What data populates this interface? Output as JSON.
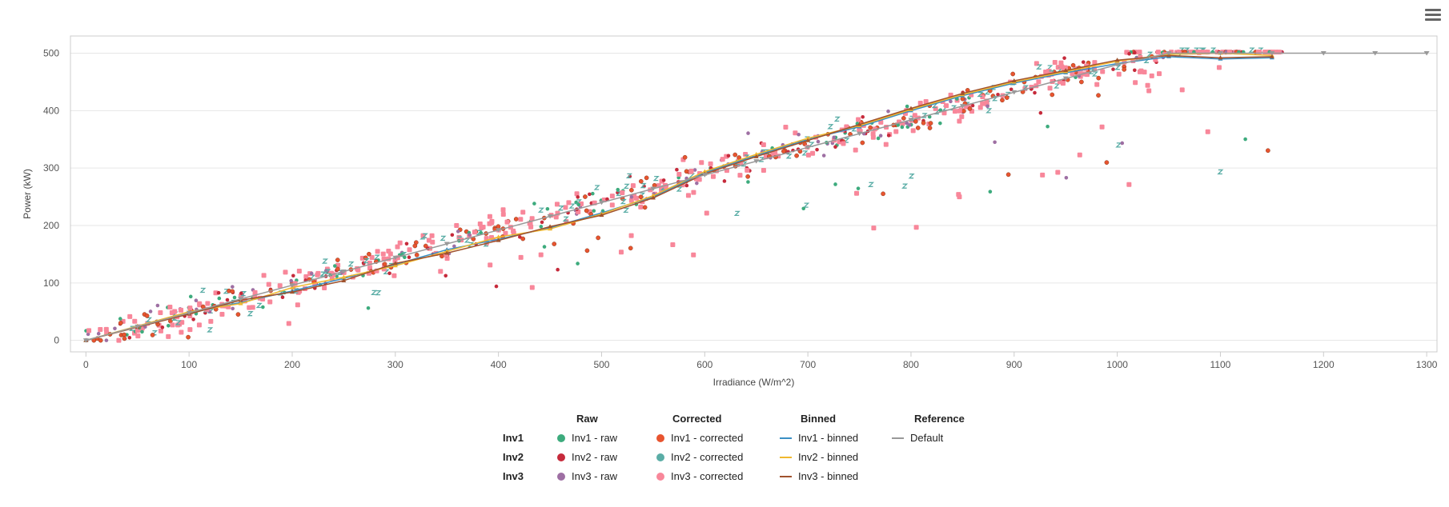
{
  "chart_data": {
    "type": "scatter",
    "title": "",
    "xlabel": "Irradiance (W/m^2)",
    "ylabel": "Power (kW)",
    "xlim": [
      -15,
      1310
    ],
    "ylim": [
      -20,
      530
    ],
    "xticks": [
      0,
      100,
      200,
      300,
      400,
      500,
      600,
      700,
      800,
      900,
      1000,
      1100,
      1200,
      1300
    ],
    "yticks": [
      0,
      100,
      200,
      300,
      400,
      500
    ],
    "grid": true,
    "clip_max": 502,
    "raw_scatter": {
      "seed": 7,
      "count": 900,
      "x_range": [
        0,
        1160
      ],
      "slope": 0.485,
      "spread": 18,
      "outlier_share": 0.14
    },
    "series": [
      {
        "name": "Inv1 - raw",
        "group": "Raw",
        "inverter": "Inv1",
        "marker": "circle",
        "color": "#3dab7d"
      },
      {
        "name": "Inv2 - raw",
        "group": "Raw",
        "inverter": "Inv2",
        "marker": "circle",
        "color": "#c62a3b"
      },
      {
        "name": "Inv3 - raw",
        "group": "Raw",
        "inverter": "Inv3",
        "marker": "circle",
        "color": "#9e6fa3"
      },
      {
        "name": "Inv1 - corrected",
        "group": "Corrected",
        "inverter": "Inv1",
        "marker": "circle",
        "color": "#e8542f"
      },
      {
        "name": "Inv2 - corrected",
        "group": "Corrected",
        "inverter": "Inv2",
        "marker": "circle",
        "color": "#5aada6"
      },
      {
        "name": "Inv3 - corrected",
        "group": "Corrected",
        "inverter": "Inv3",
        "marker": "square",
        "color": "#f8879a"
      },
      {
        "name": "Inv1 - binned",
        "group": "Binned",
        "inverter": "Inv1",
        "marker": "line",
        "color": "#3a8fc4",
        "x": [
          0,
          50,
          100,
          150,
          200,
          250,
          300,
          350,
          400,
          450,
          500,
          550,
          600,
          650,
          700,
          750,
          800,
          850,
          900,
          950,
          1000,
          1050,
          1100,
          1150
        ],
        "y": [
          0,
          24,
          48,
          66,
          86,
          108,
          132,
          158,
          176,
          196,
          222,
          250,
          292,
          322,
          350,
          372,
          400,
          426,
          448,
          466,
          482,
          494,
          490,
          492
        ]
      },
      {
        "name": "Inv2 - binned",
        "group": "Binned",
        "inverter": "Inv2",
        "marker": "line",
        "color": "#f0b82e",
        "x": [
          0,
          50,
          100,
          150,
          200,
          250,
          300,
          350,
          400,
          450,
          500,
          550,
          600,
          650,
          700,
          750,
          800,
          850,
          900,
          950,
          1000,
          1050,
          1100,
          1150
        ],
        "y": [
          0,
          25,
          50,
          64,
          92,
          110,
          130,
          155,
          180,
          194,
          220,
          252,
          294,
          324,
          352,
          374,
          402,
          428,
          450,
          468,
          486,
          498,
          500,
          496
        ]
      },
      {
        "name": "Inv3 - binned",
        "group": "Binned",
        "inverter": "Inv3",
        "marker": "line",
        "color": "#a0522d",
        "x": [
          0,
          50,
          100,
          150,
          200,
          250,
          300,
          350,
          400,
          450,
          500,
          550,
          600,
          650,
          700,
          750,
          800,
          850,
          900,
          950,
          1000,
          1050,
          1100,
          1150
        ],
        "y": [
          0,
          23,
          46,
          70,
          84,
          104,
          134,
          152,
          174,
          198,
          218,
          248,
          290,
          320,
          348,
          376,
          404,
          430,
          452,
          470,
          488,
          496,
          492,
          494
        ]
      },
      {
        "name": "Default",
        "group": "Reference",
        "inverter": "",
        "marker": "triangle-down",
        "color": "#999999",
        "x": [
          0,
          50,
          100,
          150,
          200,
          250,
          300,
          350,
          400,
          450,
          500,
          550,
          600,
          650,
          700,
          750,
          800,
          850,
          900,
          950,
          1000,
          1050,
          1100,
          1150,
          1200,
          1250,
          1300
        ],
        "y": [
          0,
          24,
          48,
          72,
          96,
          120,
          144,
          168,
          192,
          216,
          240,
          264,
          288,
          312,
          336,
          360,
          384,
          408,
          432,
          456,
          480,
          500,
          500,
          500,
          500,
          500,
          500
        ]
      }
    ]
  },
  "legend": {
    "headers": {
      "raw": "Raw",
      "corrected": "Corrected",
      "binned": "Binned",
      "reference": "Reference"
    },
    "rows": [
      "Inv1",
      "Inv2",
      "Inv3"
    ],
    "items": {
      "inv1_raw": "Inv1 - raw",
      "inv2_raw": "Inv2 - raw",
      "inv3_raw": "Inv3 - raw",
      "inv1_corrected": "Inv1 - corrected",
      "inv2_corrected": "Inv2 - corrected",
      "inv3_corrected": "Inv3 - corrected",
      "inv1_binned": "Inv1 - binned",
      "inv2_binned": "Inv2 - binned",
      "inv3_binned": "Inv3 - binned",
      "default": "Default"
    },
    "colors": {
      "inv1_raw": "#3dab7d",
      "inv2_raw": "#c62a3b",
      "inv3_raw": "#9e6fa3",
      "inv1_corrected": "#e8542f",
      "inv2_corrected": "#5aada6",
      "inv3_corrected": "#f8879a",
      "inv1_binned": "#3a8fc4",
      "inv2_binned": "#f0b82e",
      "inv3_binned": "#a0522d",
      "default": "#999999"
    }
  },
  "menu": {
    "icon": "hamburger-menu-icon"
  }
}
